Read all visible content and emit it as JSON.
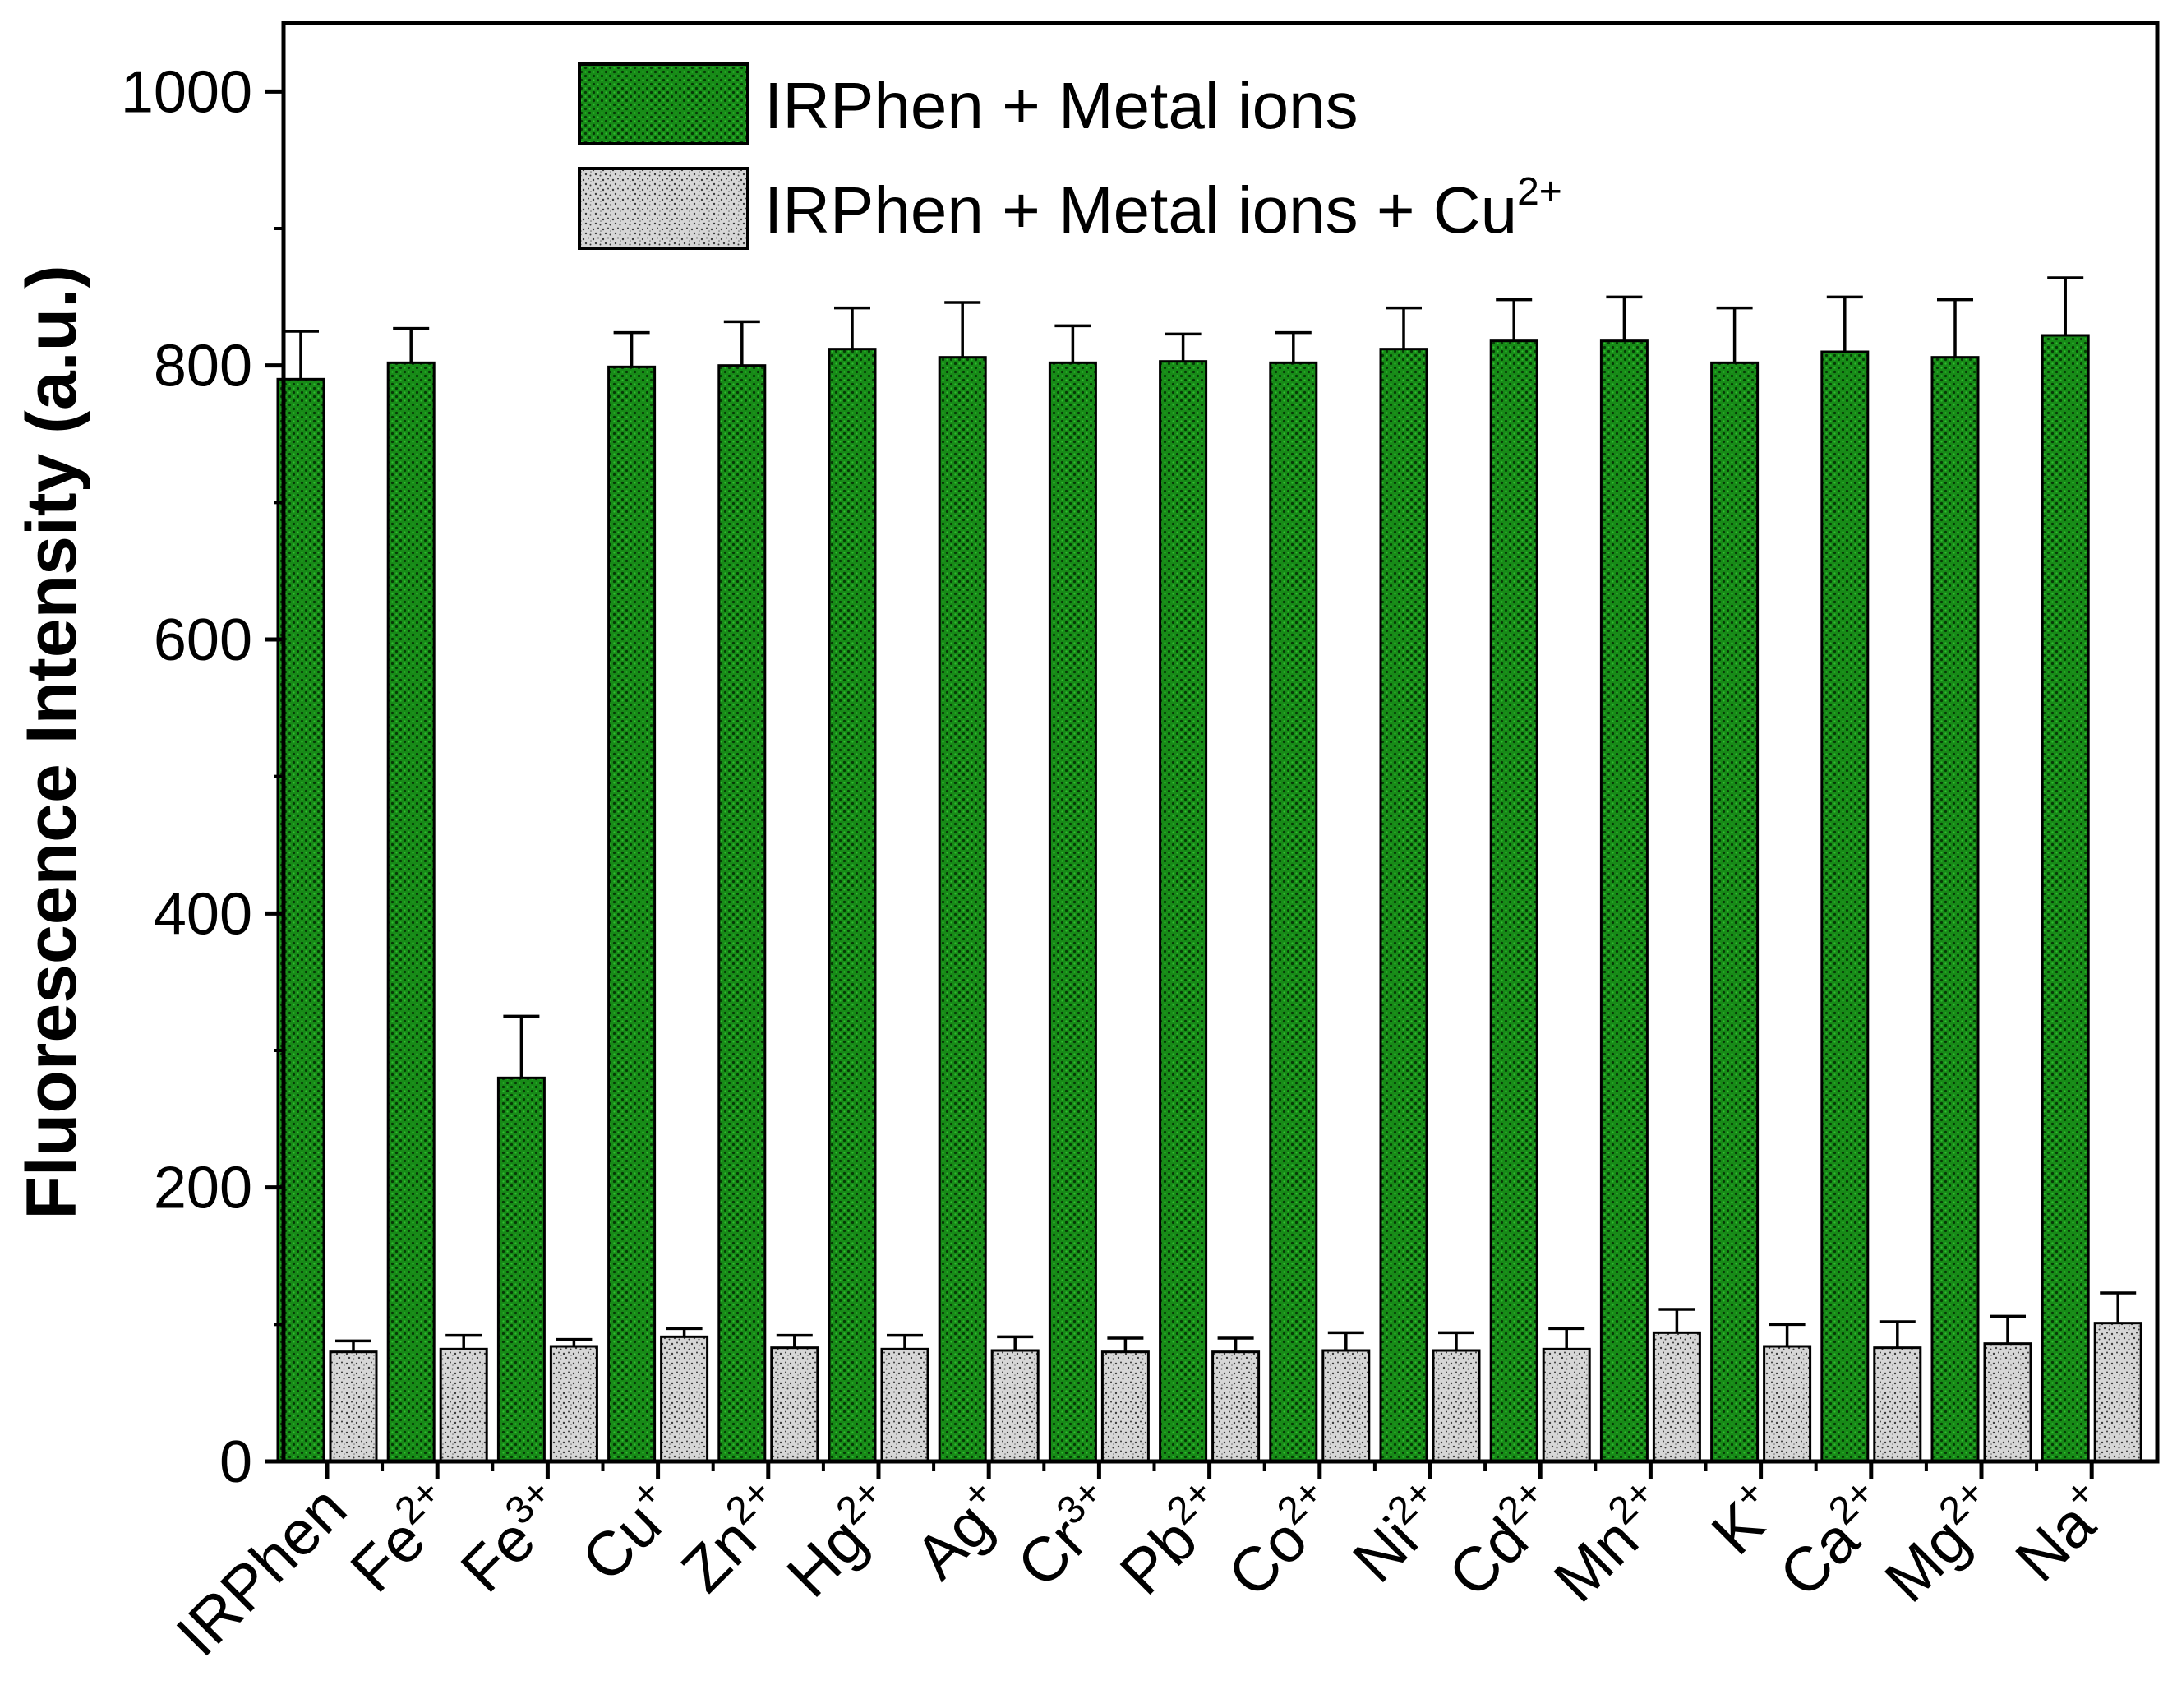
{
  "chart_data": {
    "type": "bar",
    "ylabel": "Fluorescence Intensity (a.u.)",
    "xlabel": "",
    "ylim": [
      0,
      1050
    ],
    "yticks": [
      0,
      200,
      400,
      600,
      800,
      1000
    ],
    "grid": false,
    "legend_position": "top-center",
    "categories": [
      {
        "base": "IRPhen",
        "sup": ""
      },
      {
        "base": "Fe",
        "sup": "2+"
      },
      {
        "base": "Fe",
        "sup": "3+"
      },
      {
        "base": "Cu",
        "sup": "+"
      },
      {
        "base": "Zn",
        "sup": "2+"
      },
      {
        "base": "Hg",
        "sup": "2+"
      },
      {
        "base": "Ag",
        "sup": "+"
      },
      {
        "base": "Cr",
        "sup": "3+"
      },
      {
        "base": "Pb",
        "sup": "2+"
      },
      {
        "base": "Co",
        "sup": "2+"
      },
      {
        "base": "Ni",
        "sup": "2+"
      },
      {
        "base": "Cd",
        "sup": "2+"
      },
      {
        "base": "Mn",
        "sup": "2+"
      },
      {
        "base": "K",
        "sup": "+"
      },
      {
        "base": "Ca",
        "sup": "2+"
      },
      {
        "base": "Mg",
        "sup": "2+"
      },
      {
        "base": "Na",
        "sup": "+"
      }
    ],
    "series": [
      {
        "name": "IRPhen + Metal ions",
        "name_sup": "",
        "color": "#1a7a1a",
        "values": [
          790,
          802,
          280,
          799,
          800,
          812,
          806,
          802,
          803,
          802,
          812,
          818,
          818,
          802,
          810,
          806,
          822
        ],
        "errors": [
          35,
          25,
          45,
          25,
          32,
          30,
          40,
          27,
          20,
          22,
          30,
          30,
          32,
          40,
          40,
          42,
          42
        ]
      },
      {
        "name": "IRPhen + Metal ions + Cu",
        "name_sup": "2+",
        "color": "#c8c8c8",
        "values": [
          80,
          82,
          84,
          91,
          83,
          82,
          81,
          80,
          80,
          81,
          81,
          82,
          94,
          84,
          83,
          86,
          101
        ],
        "errors": [
          8,
          10,
          5,
          6,
          9,
          10,
          10,
          10,
          10,
          13,
          13,
          15,
          17,
          16,
          19,
          20,
          22
        ]
      }
    ]
  }
}
